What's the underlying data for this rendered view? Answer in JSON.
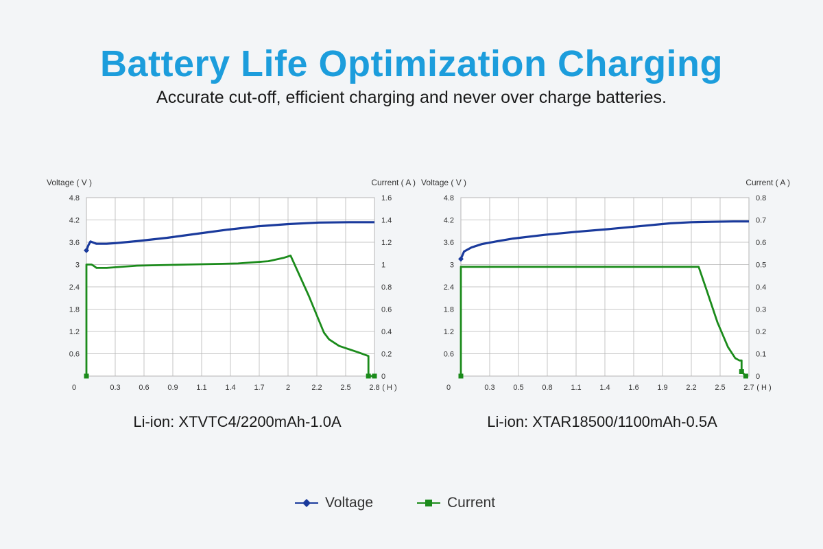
{
  "header": {
    "title": "Battery Life Optimization Charging",
    "subtitle": "Accurate cut-off, efficient charging and never over charge batteries."
  },
  "legend": {
    "voltage": "Voltage",
    "current": "Current"
  },
  "colors": {
    "title": "#1c9ddc",
    "voltage": "#1a3a9c",
    "current": "#1b8b1b",
    "grid": "#b5b5b5"
  },
  "chart_data": [
    {
      "type": "line",
      "caption": "Li-ion: XTVTC4/2200mAh-1.0A",
      "ylabel_left": "Voltage ( V )",
      "ylabel_right": "Current ( A )",
      "x_unit": "( H )",
      "xlim": [
        0,
        2.85
      ],
      "xticks": [
        0,
        0.3,
        0.6,
        0.9,
        1.1,
        1.4,
        1.7,
        2.0,
        2.2,
        2.5,
        2.8
      ],
      "ylim_left": [
        0,
        4.8
      ],
      "yticks_left": [
        "",
        "0.6",
        "1.2",
        "1.8",
        "2.4",
        "3",
        "3.6",
        "4.2",
        "4.8"
      ],
      "ylim_right": [
        0,
        1.6
      ],
      "yticks_right": [
        "0",
        "0.2",
        "0.4",
        "0.6",
        "0.8",
        "1",
        "1.2",
        "1.4",
        "1.6"
      ],
      "series": [
        {
          "name": "Voltage",
          "axis": "left",
          "x": [
            0.0,
            0.02,
            0.04,
            0.06,
            0.1,
            0.2,
            0.3,
            0.5,
            0.8,
            1.1,
            1.4,
            1.7,
            2.0,
            2.3,
            2.6,
            2.85
          ],
          "y": [
            3.38,
            3.52,
            3.62,
            3.6,
            3.56,
            3.56,
            3.58,
            3.63,
            3.72,
            3.83,
            3.94,
            4.03,
            4.09,
            4.13,
            4.14,
            4.14
          ],
          "start_marker": [
            0.0,
            3.38
          ]
        },
        {
          "name": "Current",
          "axis": "right",
          "x": [
            0.0,
            0.0,
            0.05,
            0.07,
            0.1,
            0.2,
            0.5,
            1.0,
            1.5,
            1.8,
            1.95,
            2.02,
            2.2,
            2.35,
            2.4,
            2.5,
            2.6,
            2.7,
            2.79,
            2.79,
            2.79,
            2.85
          ],
          "y": [
            0.0,
            1.0,
            1.0,
            0.99,
            0.97,
            0.97,
            0.99,
            1.0,
            1.01,
            1.03,
            1.06,
            1.08,
            0.72,
            0.39,
            0.33,
            0.27,
            0.24,
            0.21,
            0.18,
            0.1,
            0.0,
            0.0
          ],
          "start_marker": [
            0.0,
            0.0
          ],
          "end_markers": [
            [
              2.79,
              0.0
            ],
            [
              2.85,
              0.0
            ]
          ]
        }
      ]
    },
    {
      "type": "line",
      "caption": "Li-ion: XTAR18500/1100mAh-0.5A",
      "ylabel_left": "Voltage ( V )",
      "ylabel_right": "Current ( A )",
      "x_unit": "( H )",
      "xlim": [
        0,
        2.75
      ],
      "xticks": [
        0,
        0.3,
        0.5,
        0.8,
        1.1,
        1.4,
        1.6,
        1.9,
        2.2,
        2.5,
        2.7
      ],
      "ylim_left": [
        0,
        4.8
      ],
      "yticks_left": [
        "",
        "0.6",
        "1.2",
        "1.8",
        "2.4",
        "3",
        "3.6",
        "4.2",
        "4.8"
      ],
      "ylim_right": [
        0,
        0.8
      ],
      "yticks_right": [
        "0",
        "0.1",
        "0.2",
        "0.3",
        "0.4",
        "0.5",
        "0.6",
        "0.7",
        "0.8"
      ],
      "series": [
        {
          "name": "Voltage",
          "axis": "left",
          "x": [
            0.0,
            0.03,
            0.1,
            0.2,
            0.35,
            0.5,
            0.8,
            1.1,
            1.4,
            1.7,
            2.0,
            2.2,
            2.4,
            2.6,
            2.75
          ],
          "y": [
            3.15,
            3.35,
            3.46,
            3.55,
            3.63,
            3.7,
            3.8,
            3.88,
            3.95,
            4.03,
            4.11,
            4.14,
            4.15,
            4.16,
            4.16
          ],
          "start_marker": [
            0.0,
            3.15
          ]
        },
        {
          "name": "Current",
          "axis": "right",
          "x": [
            0.0,
            0.0,
            0.1,
            0.5,
            1.0,
            1.5,
            2.0,
            2.2,
            2.27,
            2.35,
            2.45,
            2.55,
            2.62,
            2.66,
            2.68,
            2.68,
            2.72
          ],
          "y": [
            0.0,
            0.49,
            0.49,
            0.49,
            0.49,
            0.49,
            0.49,
            0.49,
            0.49,
            0.38,
            0.24,
            0.13,
            0.08,
            0.07,
            0.07,
            0.02,
            0.0
          ],
          "start_marker": [
            0.0,
            0.0
          ],
          "end_markers": [
            [
              2.68,
              0.02
            ],
            [
              2.72,
              0.0
            ]
          ]
        }
      ]
    }
  ]
}
